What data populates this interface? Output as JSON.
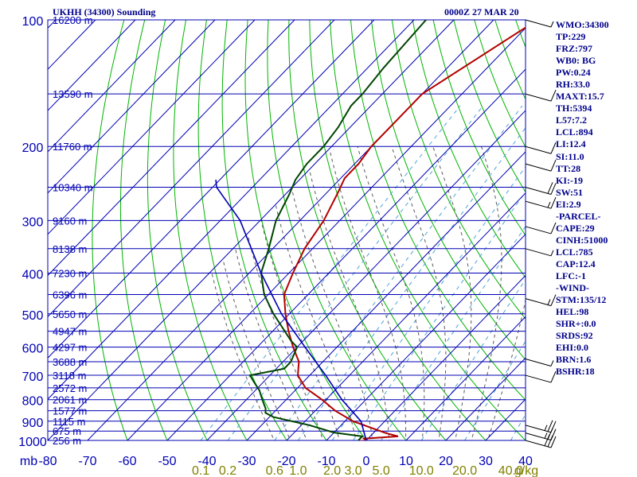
{
  "header": {
    "station": "UKHH (34300) Sounding",
    "time": "0000Z 27 MAR 20"
  },
  "stats": [
    "WMO:34300",
    "TP:229",
    "FRZ:797",
    "WB0: BG",
    "PW:0.24",
    "RH:33.0",
    "MAXT:15.7",
    "TH:5394",
    "L57:7.2",
    "LCL:894",
    "LI:12.4",
    "SI:11.0",
    "TT:28",
    "KI:-19",
    "SW:51",
    "EI:2.9",
    "-PARCEL-",
    "CAPE:29",
    "CINH:51000",
    "LCL:785",
    "CAP:12.4",
    "LFC:-1",
    "-WIND-",
    "STM:135/12",
    "HEL:98",
    "SHR+:0.0",
    "SRDS:92",
    "EHI:0.0",
    "BRN:1.6",
    "BSHR:18"
  ],
  "colors": {
    "grid": "#0000b4",
    "dry_adiabat": "#00b400",
    "moist_adiabat": "#5a5a5a",
    "mixing_ratio": "#4fa3d6",
    "temperature": "#b40000",
    "dewpoint": "#004400",
    "parcel": "#0000b4",
    "axis_text": "#0000b4",
    "mixing_text": "#808000"
  },
  "chart_data": {
    "type": "line",
    "title": "UKHH (34300) Sounding",
    "subtitle": "0000Z 27 MAR 20",
    "ylabel": "mb",
    "xlim": [
      -80,
      40
    ],
    "ylim": [
      1000,
      100
    ],
    "y_scale": "log",
    "grid": true,
    "pressure_ticks": [
      "100",
      "200",
      "300",
      "400",
      "500",
      "600",
      "700",
      "800",
      "900",
      "1000"
    ],
    "temperature_ticks": [
      "-80",
      "-70",
      "-60",
      "-50",
      "-40",
      "-30",
      "-20",
      "-10",
      "0",
      "10",
      "20",
      "30",
      "40"
    ],
    "mixing_ratio_ticks": [
      {
        "label": "0.1",
        "t": -36.7
      },
      {
        "label": "0.2",
        "t": -31.3
      },
      {
        "label": "0.6",
        "t": -22.3
      },
      {
        "label": "1.0",
        "t": -17.4
      },
      {
        "label": "2.0",
        "t": -9.8
      },
      {
        "label": "3.0",
        "t": -5.0
      },
      {
        "label": "5.0",
        "t": 1.5
      },
      {
        "label": "10.0",
        "t": 10.4
      },
      {
        "label": "20.0",
        "t": 20.7
      },
      {
        "label": "40.0",
        "t": 32.0
      }
    ],
    "mixing_ratio_unit": "g/kg",
    "height_labels": [
      {
        "p": 100,
        "label": "16200 m"
      },
      {
        "p": 150,
        "label": "13590 m"
      },
      {
        "p": 200,
        "label": "11760 m"
      },
      {
        "p": 250,
        "label": "10340 m"
      },
      {
        "p": 300,
        "label": "9160 m"
      },
      {
        "p": 350,
        "label": "8138 m"
      },
      {
        "p": 400,
        "label": "7230 m"
      },
      {
        "p": 450,
        "label": "6396 m"
      },
      {
        "p": 500,
        "label": "5650 m"
      },
      {
        "p": 550,
        "label": "4947 m"
      },
      {
        "p": 600,
        "label": "4297 m"
      },
      {
        "p": 650,
        "label": "3688 m"
      },
      {
        "p": 700,
        "label": "3118 m"
      },
      {
        "p": 750,
        "label": "2572 m"
      },
      {
        "p": 800,
        "label": "2061 m"
      },
      {
        "p": 850,
        "label": "1577 m"
      },
      {
        "p": 900,
        "label": "1115 m"
      },
      {
        "p": 950,
        "label": "675 m"
      },
      {
        "p": 1000,
        "label": "256 m"
      }
    ],
    "series": [
      {
        "key": "temperature",
        "points": [
          [
            1010,
            -5
          ],
          [
            1000,
            0
          ],
          [
            990,
            -1
          ],
          [
            978,
            7
          ],
          [
            960,
            3
          ],
          [
            900,
            -8
          ],
          [
            850,
            -15
          ],
          [
            800,
            -21
          ],
          [
            750,
            -28
          ],
          [
            700,
            -33
          ],
          [
            650,
            -36
          ],
          [
            600,
            -41
          ],
          [
            550,
            -46
          ],
          [
            500,
            -51
          ],
          [
            450,
            -56
          ],
          [
            400,
            -59
          ],
          [
            350,
            -62
          ],
          [
            300,
            -64
          ],
          [
            260,
            -67
          ],
          [
            238,
            -69
          ],
          [
            220,
            -69
          ],
          [
            200,
            -70
          ],
          [
            150,
            -70
          ],
          [
            100,
            -59
          ]
        ]
      },
      {
        "key": "dewpoint",
        "points": [
          [
            1000,
            -2
          ],
          [
            978,
            -2
          ],
          [
            958,
            -10
          ],
          [
            920,
            -18
          ],
          [
            880,
            -29
          ],
          [
            860,
            -32
          ],
          [
            840,
            -33
          ],
          [
            800,
            -36
          ],
          [
            760,
            -39
          ],
          [
            730,
            -42
          ],
          [
            700,
            -45
          ],
          [
            675,
            -38
          ],
          [
            650,
            -38
          ],
          [
            625,
            -39
          ],
          [
            600,
            -40
          ],
          [
            580,
            -43
          ],
          [
            500,
            -54
          ],
          [
            450,
            -61
          ],
          [
            400,
            -67
          ],
          [
            350,
            -71
          ],
          [
            300,
            -76
          ],
          [
            260,
            -79
          ],
          [
            240,
            -81
          ],
          [
            220,
            -82
          ],
          [
            200,
            -82
          ],
          [
            180,
            -83
          ],
          [
            160,
            -85
          ],
          [
            150,
            -85
          ],
          [
            130,
            -86
          ],
          [
            100,
            -87
          ]
        ]
      },
      {
        "key": "parcel",
        "points": [
          [
            1000,
            0
          ],
          [
            900,
            -6
          ],
          [
            800,
            -16
          ],
          [
            700,
            -26
          ],
          [
            600,
            -38
          ],
          [
            500,
            -52
          ],
          [
            400,
            -67
          ],
          [
            300,
            -85
          ],
          [
            250,
            -99
          ],
          [
            240,
            -101
          ]
        ]
      }
    ],
    "wind_barbs": [
      {
        "p": 1000,
        "spd_kt": 30
      },
      {
        "p": 960,
        "spd_kt": 25
      },
      {
        "p": 920,
        "spd_kt": 25
      },
      {
        "p": 700,
        "spd_kt": 10
      },
      {
        "p": 640,
        "spd_kt": 5
      },
      {
        "p": 460,
        "spd_kt": 15
      },
      {
        "p": 350,
        "spd_kt": 5
      },
      {
        "p": 310,
        "spd_kt": 10
      },
      {
        "p": 270,
        "spd_kt": 15
      },
      {
        "p": 250,
        "spd_kt": 20
      },
      {
        "p": 220,
        "spd_kt": 10
      },
      {
        "p": 200,
        "spd_kt": 10
      },
      {
        "p": 150,
        "spd_kt": 10
      },
      {
        "p": 100,
        "spd_kt": 5
      }
    ]
  }
}
